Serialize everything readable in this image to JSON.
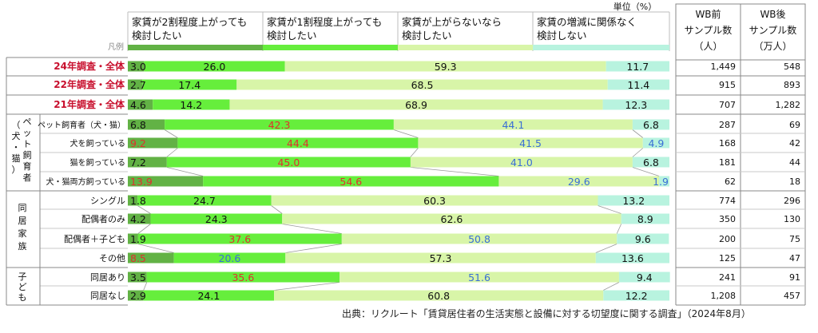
{
  "unit_label": "単位（%）",
  "legend_title": "凡例",
  "source": "出典：リクルート「賃貸居住者の生活実態と設備に対する切望度に関する調査」（2024年8月）",
  "sample_headers": {
    "before": [
      "WB前",
      "サンプル数",
      "（人）"
    ],
    "after": [
      "WB後",
      "サンプル数",
      "（万人）"
    ]
  },
  "groups": [
    {
      "label": [
        "ペ",
        "ッ",
        "ト",
        "飼",
        "育",
        "者"
      ],
      "paren_label": [
        "（",
        "犬",
        "・",
        "猫",
        "）"
      ]
    },
    {
      "label": [
        "同",
        "居",
        "家",
        "族"
      ]
    },
    {
      "label": [
        "子",
        "ど",
        "も"
      ]
    }
  ],
  "colors": {
    "s1": "#62b245",
    "s2": "#66ee3c",
    "s3": "#d8f5a8",
    "s4": "#b8f3df",
    "highlight": "#c8102e",
    "red_text": "#e0302f",
    "blue_text": "#3a6fd6"
  },
  "chart_data": {
    "type": "bar",
    "orientation": "horizontal",
    "stacked": true,
    "xlim": [
      0,
      100
    ],
    "categories": [
      "24年調査・全体",
      "22年調査・全体",
      "21年調査・全体",
      "ペット飼育者（犬・猫）",
      "犬を飼っている",
      "猫を飼っている",
      "犬・猫両方飼っている",
      "シングル",
      "配偶者のみ",
      "配偶者＋子ども",
      "その他",
      "同居あり",
      "同居なし"
    ],
    "series": [
      {
        "name": "家賃が2割程度上がっても検討したい",
        "values": [
          3.0,
          2.7,
          4.6,
          6.8,
          9.2,
          7.2,
          13.9,
          1.8,
          4.2,
          1.9,
          8.5,
          3.5,
          2.9
        ]
      },
      {
        "name": "家賃が1割程度上がっても検討したい",
        "values": [
          26.0,
          17.4,
          14.2,
          42.3,
          44.4,
          45.0,
          54.6,
          24.7,
          24.3,
          37.6,
          20.6,
          35.6,
          24.1
        ]
      },
      {
        "name": "家賃が上がらないなら検討したい",
        "values": [
          59.3,
          68.5,
          68.9,
          44.1,
          41.5,
          41.0,
          29.6,
          60.3,
          62.6,
          50.8,
          57.3,
          51.6,
          60.8
        ]
      },
      {
        "name": "家賃の増減に関係なく検討しない",
        "values": [
          11.7,
          11.4,
          12.3,
          6.8,
          4.9,
          6.8,
          1.9,
          13.2,
          8.9,
          9.6,
          13.6,
          9.4,
          12.2
        ]
      }
    ],
    "label_texts": [
      [
        "3.0",
        "26.0",
        "59.3",
        "11.7"
      ],
      [
        "2.7",
        "17.4",
        "68.5",
        "11.4"
      ],
      [
        "4.6",
        "14.2",
        "68.9",
        "12.3"
      ],
      [
        "6.8",
        "42.3",
        "44.1",
        "6.8"
      ],
      [
        "9.2",
        "44.4",
        "41.5",
        "4.9"
      ],
      [
        "7.2",
        "45.0",
        "41.0",
        "6.8"
      ],
      [
        "13.9",
        "54.6",
        "29.6",
        "1.9"
      ],
      [
        "1.8",
        "24.7",
        "60.3",
        "13.2"
      ],
      [
        "4.2",
        "24.3",
        "62.6",
        "8.9"
      ],
      [
        "1.9",
        "37.6",
        "50.8",
        "9.6"
      ],
      [
        "8.5",
        "20.6",
        "57.3",
        "13.6"
      ],
      [
        "3.5",
        "35.6",
        "51.6",
        "9.4"
      ],
      [
        "2.9",
        "24.1",
        "60.8",
        "12.2"
      ]
    ],
    "label_colors": [
      [
        "k",
        "k",
        "k",
        "k"
      ],
      [
        "k",
        "k",
        "k",
        "k"
      ],
      [
        "k",
        "k",
        "k",
        "k"
      ],
      [
        "k",
        "r",
        "b",
        "k"
      ],
      [
        "r",
        "r",
        "b",
        "b"
      ],
      [
        "k",
        "r",
        "b",
        "k"
      ],
      [
        "r",
        "r",
        "b",
        "b"
      ],
      [
        "k",
        "k",
        "k",
        "k"
      ],
      [
        "k",
        "k",
        "k",
        "k"
      ],
      [
        "k",
        "r",
        "b",
        "k"
      ],
      [
        "r",
        "b",
        "k",
        "k"
      ],
      [
        "k",
        "r",
        "b",
        "k"
      ],
      [
        "k",
        "k",
        "k",
        "k"
      ]
    ],
    "highlight_rows": [
      0,
      1,
      2
    ],
    "sample_before": [
      "1,449",
      "915",
      "707",
      "287",
      "168",
      "181",
      "62",
      "774",
      "350",
      "200",
      "125",
      "241",
      "1,208"
    ],
    "sample_after": [
      "548",
      "893",
      "1,282",
      "69",
      "42",
      "44",
      "18",
      "296",
      "130",
      "75",
      "47",
      "91",
      "457"
    ]
  }
}
